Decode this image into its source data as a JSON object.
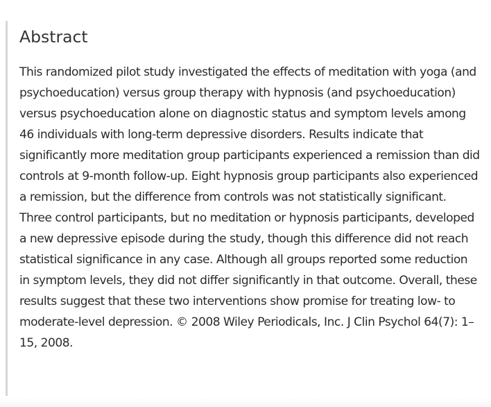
{
  "abstract": {
    "heading": "Abstract",
    "body": "This randomized pilot study investigated the effects of meditation with yoga (and psychoeducation) versus group therapy with hypnosis (and psychoeducation) versus psychoeducation alone on diagnostic status and symptom levels among 46 individuals with long-term depressive disorders. Results indicate that significantly more meditation group participants experienced a remission than did controls at 9-month follow-up. Eight hypnosis group participants also experienced a remission, but the difference from controls was not statistically significant. Three control participants, but no meditation or hypnosis participants, developed a new depressive episode during the study, though this difference did not reach statistical significance in any case. Although all groups reported some reduction in symptom levels, they did not differ significantly in that outcome. Overall, these results suggest that these two interventions show promise for treating low- to moderate-level depression. © 2008 Wiley Periodicals, Inc. J Clin Psychol 64(7): 1–15, 2008."
  }
}
